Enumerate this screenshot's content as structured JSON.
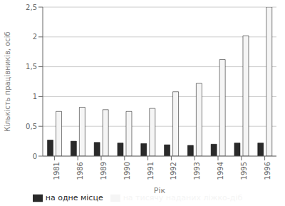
{
  "chart_data": {
    "type": "bar",
    "xlabel": "Рік",
    "ylabel": "Кількість працівників, осіб",
    "categories": [
      "1981",
      "1986",
      "1989",
      "1990",
      "1991",
      "1992",
      "1993",
      "1994",
      "1995",
      "1996"
    ],
    "series": [
      {
        "name": "на одне місце",
        "color": "#2a2a2a",
        "values": [
          0.27,
          0.25,
          0.23,
          0.22,
          0.21,
          0.19,
          0.18,
          0.2,
          0.22,
          0.22
        ]
      },
      {
        "name": "на тисячу наданих ліжко-діб",
        "color": "#f5f5f5",
        "values": [
          0.75,
          0.82,
          0.78,
          0.75,
          0.8,
          1.08,
          1.22,
          1.62,
          2.02,
          2.5
        ]
      }
    ],
    "ylim": [
      0,
      2.5
    ],
    "yticks": [
      0,
      {
        "value": 0.5,
        "label": "0,5"
      },
      1,
      {
        "value": 1.5,
        "label": "1,5"
      },
      2,
      {
        "value": 2.5,
        "label": "2,5"
      }
    ],
    "grid": true,
    "legend": "bottom"
  }
}
